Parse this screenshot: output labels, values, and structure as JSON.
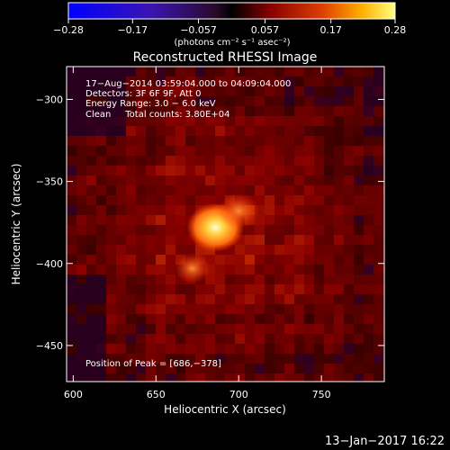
{
  "chart_data": {
    "type": "heatmap",
    "title": "Reconstructed RHESSI Image",
    "xlabel": "Heliocentric X (arcsec)",
    "ylabel": "Heliocentric Y (arcsec)",
    "xlim": [
      596,
      788
    ],
    "ylim": [
      -472,
      -280
    ],
    "x_ticks": [
      600,
      650,
      700,
      750
    ],
    "y_ticks": [
      -300,
      -350,
      -400,
      -450
    ],
    "x_tick_labels": [
      "600",
      "650",
      "700",
      "750"
    ],
    "y_tick_labels": [
      "−300",
      "−350",
      "−400",
      "−450"
    ],
    "colorbar": {
      "min": -0.28,
      "max": 0.28,
      "tick_values": [
        -0.28,
        -0.17,
        -0.057,
        0.057,
        0.17,
        0.28
      ],
      "tick_labels": [
        "−0.28",
        "−0.17",
        "−0.057",
        "0.057",
        "0.17",
        "0.28"
      ],
      "unit_label": "(photons cm⁻² s⁻¹ asec⁻²)"
    },
    "info_lines": [
      "17−Aug−2014 03:59:04.000 to 04:09:04.000",
      "Detectors: 3F 6F 9F, Att 0",
      "Energy Range: 3.0 − 6.0 keV",
      "Clean     Total counts: 3.80E+04"
    ],
    "peak_text": "Position of Peak = [686,−378]",
    "peak": [
      686,
      -378
    ],
    "sources": [
      {
        "x": 686,
        "y": -378,
        "value": 0.28
      },
      {
        "x": 672,
        "y": -403,
        "value": 0.13
      },
      {
        "x": 700,
        "y": -368,
        "value": 0.17
      }
    ]
  },
  "footer": {
    "date": "13−Jan−2017 16:22"
  }
}
